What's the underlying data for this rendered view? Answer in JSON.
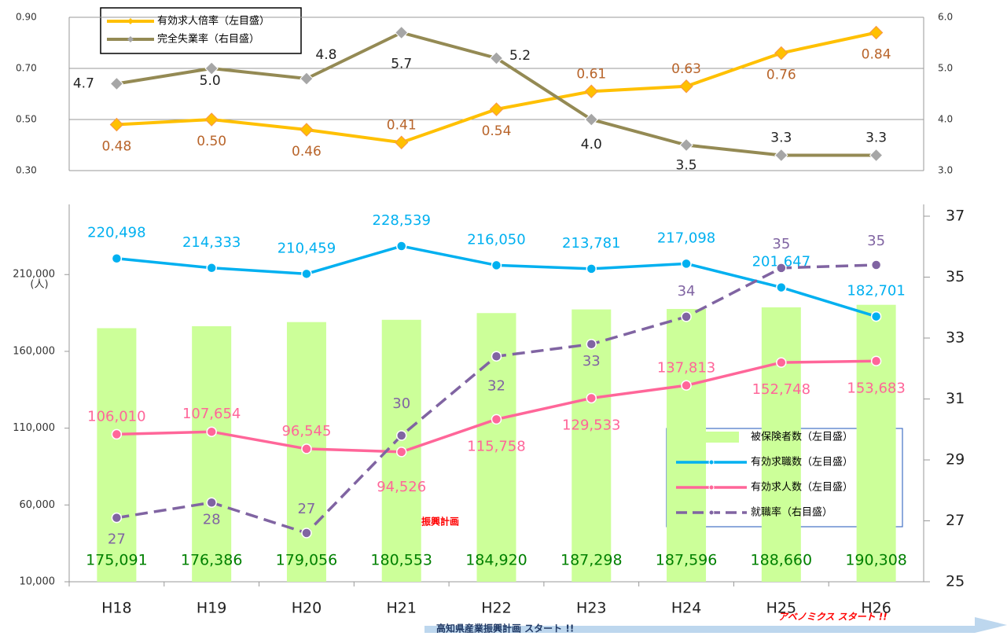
{
  "chart_data": [
    {
      "type": "line",
      "ylim": [
        0.3,
        0.9
      ],
      "yticks": [
        {
          "value": 0.3,
          "label": "0.30"
        },
        {
          "value": 0.5,
          "label": "0.50"
        },
        {
          "value": 0.7,
          "label": "0.70"
        },
        {
          "value": 0.9,
          "label": "0.90"
        }
      ],
      "y2lim": [
        3,
        6
      ],
      "y2ticks": [
        {
          "value": 3,
          "label": "3.0"
        },
        {
          "value": 4,
          "label": "4.0"
        },
        {
          "value": 5,
          "label": "5.0"
        },
        {
          "value": 6,
          "label": "6.0"
        }
      ],
      "grid": true,
      "series": [
        {
          "name": "有効求人倍率（左目盛）",
          "color": "#ffc000",
          "values": [
            0.48,
            0.5,
            0.46,
            0.41,
            0.54,
            0.61,
            0.63,
            0.76,
            0.84
          ],
          "value_labels": [
            "0.48",
            "0.50",
            "0.46",
            "0.41",
            "0.54",
            "0.61",
            "0.63",
            "0.76",
            "0.84"
          ]
        },
        {
          "name": "完全失業率（右目盛）",
          "color": "#948a54",
          "axis": "y2",
          "values": [
            4.7,
            5.0,
            4.8,
            5.7,
            5.2,
            4.0,
            3.5,
            3.3,
            3.3
          ],
          "value_labels": [
            "4.7",
            "5.0",
            "4.8",
            "5.7",
            "5.2",
            "4.0",
            "3.5",
            "3.3",
            "3.3"
          ]
        }
      ]
    },
    {
      "type": "combo",
      "categories": [
        "H18",
        "H19",
        "H20",
        "H21",
        "H22",
        "H23",
        "H24",
        "H25",
        "H26"
      ],
      "ylim": [
        10000,
        248000
      ],
      "yticks": [
        {
          "value": 10000,
          "label": "10,000"
        },
        {
          "value": 60000,
          "label": "60,000"
        },
        {
          "value": 110000,
          "label": "110,000"
        },
        {
          "value": 160000,
          "label": "160,000"
        },
        {
          "value": 210000,
          "label": "210,000"
        }
      ],
      "y_unit": "(人)",
      "y2lim": [
        25,
        37
      ],
      "y2ticks": [
        25,
        27,
        29,
        31,
        33,
        35,
        37
      ],
      "series": [
        {
          "name": "被保険者数（左目盛）",
          "kind": "bar",
          "color": "#ccff99",
          "label_color": "#008000",
          "values": [
            175091,
            176386,
            179056,
            180553,
            184920,
            187298,
            187596,
            188660,
            190308
          ],
          "value_labels": [
            "175,091",
            "176,386",
            "179,056",
            "180,553",
            "184,920",
            "187,298",
            "187,596",
            "188,660",
            "190,308"
          ]
        },
        {
          "name": "有効求職数（左目盛）",
          "kind": "line",
          "color": "#00b0f0",
          "values": [
            220498,
            214333,
            210459,
            228539,
            216050,
            213781,
            217098,
            201647,
            182701
          ],
          "value_labels": [
            "220,498",
            "214,333",
            "210,459",
            "228,539",
            "216,050",
            "213,781",
            "217,098",
            "201,647",
            "182,701"
          ]
        },
        {
          "name": "有効求人数（左目盛）",
          "kind": "line",
          "color": "#ff6699",
          "values": [
            106010,
            107654,
            96545,
            94526,
            115758,
            129533,
            137813,
            152748,
            153683
          ],
          "value_labels": [
            "106,010",
            "107,654",
            "96,545",
            "94,526",
            "115,758",
            "129,533",
            "137,813",
            "152,748",
            "153,683"
          ]
        },
        {
          "name": "就職率（右目盛）",
          "kind": "dash",
          "color": "#8064a2",
          "axis": "y2",
          "values": [
            27.1,
            27.6,
            26.6,
            29.8,
            32.4,
            32.8,
            33.7,
            35.3,
            35.4
          ],
          "value_labels": [
            "27",
            "28",
            "27",
            "30",
            "32",
            "33",
            "34",
            "35",
            "35"
          ]
        }
      ],
      "annotations": [
        "産業振興計画",
        "高知県産業振興計画 スタート !!",
        "アベノミクス スタート !!"
      ]
    }
  ]
}
